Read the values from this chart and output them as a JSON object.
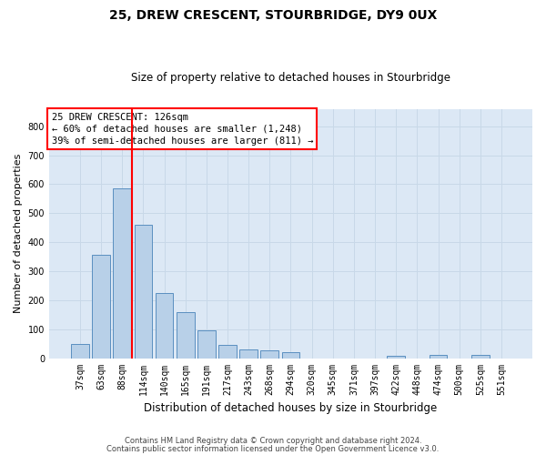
{
  "title1": "25, DREW CRESCENT, STOURBRIDGE, DY9 0UX",
  "title2": "Size of property relative to detached houses in Stourbridge",
  "xlabel": "Distribution of detached houses by size in Stourbridge",
  "ylabel": "Number of detached properties",
  "categories": [
    "37sqm",
    "63sqm",
    "88sqm",
    "114sqm",
    "140sqm",
    "165sqm",
    "191sqm",
    "217sqm",
    "243sqm",
    "268sqm",
    "294sqm",
    "320sqm",
    "345sqm",
    "371sqm",
    "397sqm",
    "422sqm",
    "448sqm",
    "474sqm",
    "500sqm",
    "525sqm",
    "551sqm"
  ],
  "values": [
    50,
    355,
    585,
    460,
    225,
    160,
    95,
    45,
    30,
    28,
    22,
    0,
    0,
    0,
    0,
    8,
    0,
    10,
    0,
    10,
    0
  ],
  "bar_color": "#b8d0e8",
  "bar_edge_color": "#5a8fc0",
  "grid_color": "#c8d8e8",
  "background_color": "#dce8f5",
  "reference_line_color": "red",
  "annotation_text": "25 DREW CRESCENT: 126sqm\n← 60% of detached houses are smaller (1,248)\n39% of semi-detached houses are larger (811) →",
  "annotation_box_color": "white",
  "annotation_box_edge": "red",
  "footer1": "Contains HM Land Registry data © Crown copyright and database right 2024.",
  "footer2": "Contains public sector information licensed under the Open Government Licence v3.0.",
  "ylim": [
    0,
    860
  ],
  "yticks": [
    0,
    100,
    200,
    300,
    400,
    500,
    600,
    700,
    800
  ]
}
